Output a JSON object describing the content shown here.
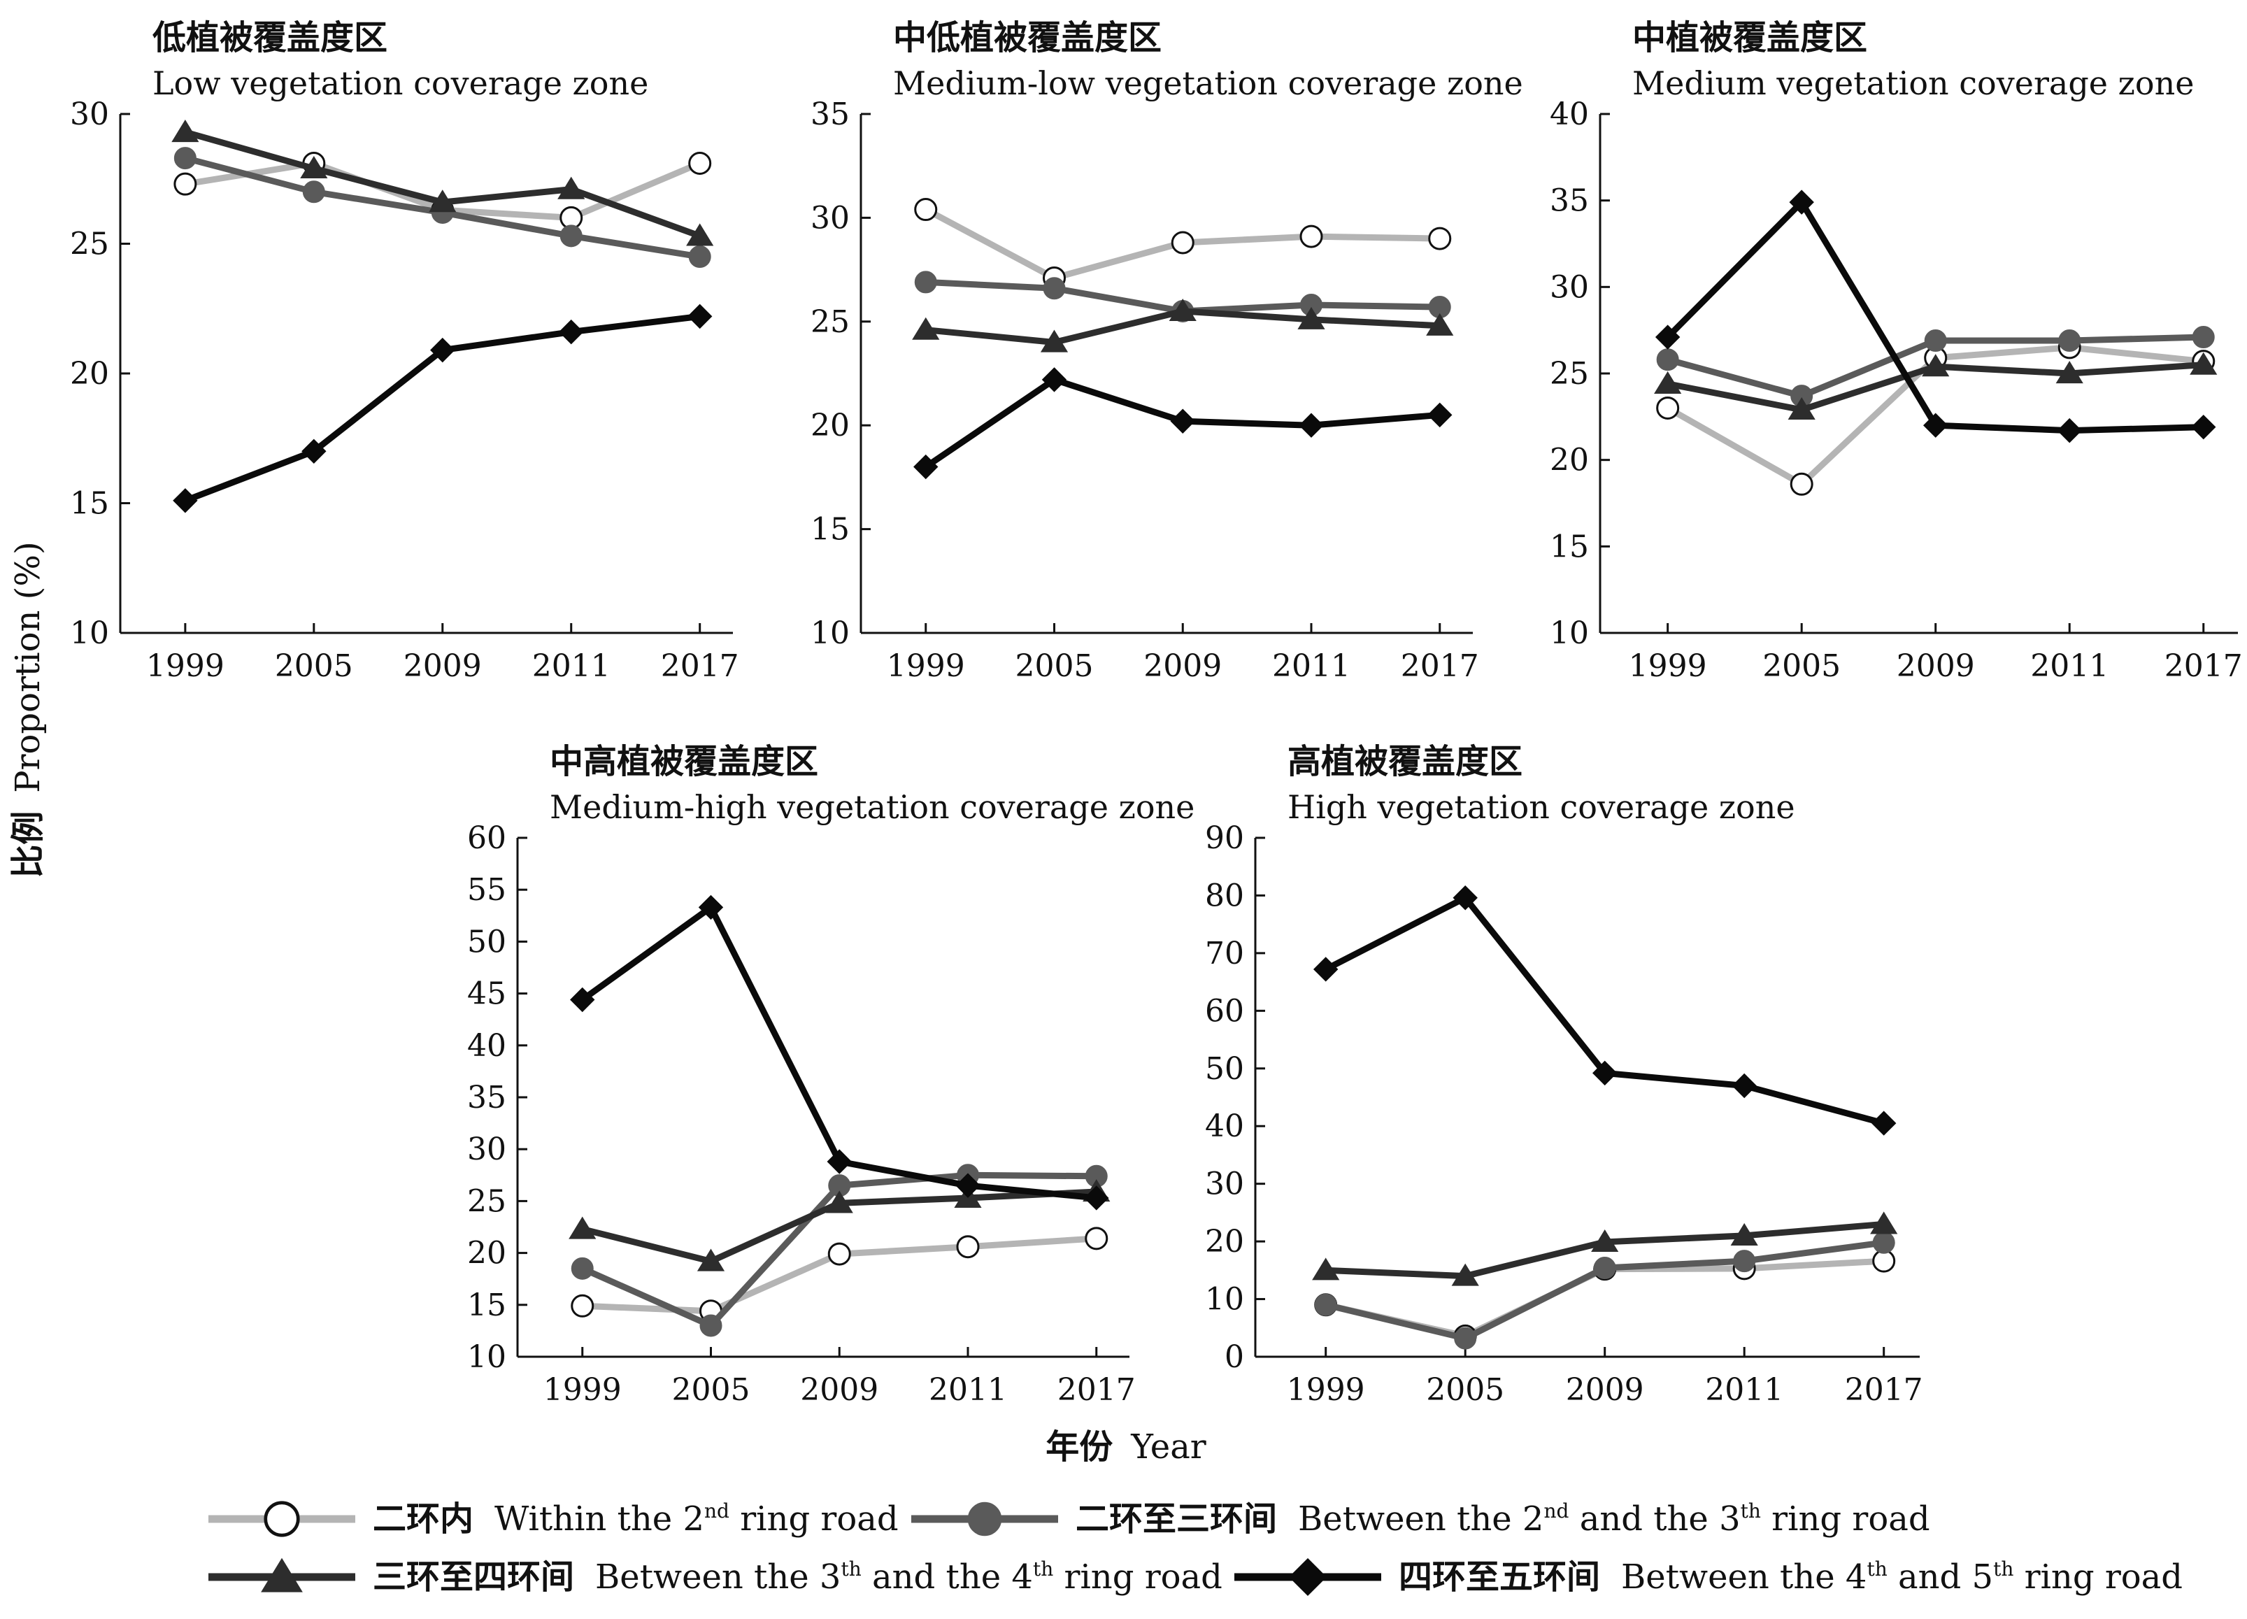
{
  "chart_data": {
    "type": "line",
    "xlabel_zh": "年份",
    "xlabel_en": "Year",
    "ylabel_zh": "比例",
    "ylabel_en": "Proportion (%)",
    "categories": [
      "1999",
      "2005",
      "2009",
      "2011",
      "2017"
    ],
    "series_styles": {
      "s1": {
        "color": "#b4b4b4",
        "marker": "circle-open"
      },
      "s2": {
        "color": "#5a5a5a",
        "marker": "circle-filled"
      },
      "s3": {
        "color": "#2d2d2d",
        "marker": "triangle"
      },
      "s4": {
        "color": "#0a0a0a",
        "marker": "diamond"
      }
    },
    "legend": [
      {
        "key": "s1",
        "zh": "二环内",
        "en_pre": "Within the 2",
        "sup1": "nd",
        "en_mid": " ring road",
        "sup2": "",
        "en_post": ""
      },
      {
        "key": "s2",
        "zh": "二环至三环间",
        "en_pre": "Between the 2",
        "sup1": "nd",
        "en_mid": " and the 3",
        "sup2": "th",
        "en_post": " ring road"
      },
      {
        "key": "s3",
        "zh": "三环至四环间",
        "en_pre": "Between the 3",
        "sup1": "th",
        "en_mid": " and the 4",
        "sup2": "th",
        "en_post": " ring road"
      },
      {
        "key": "s4",
        "zh": "四环至五环间",
        "en_pre": "Between the 4",
        "sup1": "th",
        "en_mid": " and 5",
        "sup2": "th",
        "en_post": " ring road"
      }
    ],
    "panels": [
      {
        "id": "low",
        "title_zh": "低植被覆盖度区",
        "title_en": "Low vegetation coverage zone",
        "ylim": [
          10,
          30
        ],
        "yticks": [
          10,
          15,
          20,
          25,
          30
        ],
        "series": {
          "s1": [
            27.3,
            28.1,
            26.3,
            26.0,
            28.1
          ],
          "s2": [
            28.3,
            27.0,
            26.2,
            25.3,
            24.5
          ],
          "s3": [
            29.3,
            27.9,
            26.6,
            27.1,
            25.3
          ],
          "s4": [
            15.1,
            17.0,
            20.9,
            21.6,
            22.2
          ]
        }
      },
      {
        "id": "medlow",
        "title_zh": "中低植被覆盖度区",
        "title_en": "Medium-low vegetation coverage zone",
        "ylim": [
          10,
          35
        ],
        "yticks": [
          10,
          15,
          20,
          25,
          30,
          35
        ],
        "series": {
          "s1": [
            30.4,
            27.1,
            28.8,
            29.1,
            29.0
          ],
          "s2": [
            26.9,
            26.6,
            25.5,
            25.8,
            25.7
          ],
          "s3": [
            24.6,
            24.0,
            25.5,
            25.1,
            24.8
          ],
          "s4": [
            18.0,
            22.2,
            20.2,
            20.0,
            20.5
          ]
        }
      },
      {
        "id": "med",
        "title_zh": "中植被覆盖度区",
        "title_en": "Medium vegetation coverage zone",
        "ylim": [
          10,
          40
        ],
        "yticks": [
          10,
          15,
          20,
          25,
          30,
          35,
          40
        ],
        "series": {
          "s1": [
            23.0,
            18.6,
            25.9,
            26.5,
            25.7
          ],
          "s2": [
            25.8,
            23.7,
            26.9,
            26.9,
            27.1
          ],
          "s3": [
            24.4,
            22.9,
            25.4,
            25.0,
            25.5
          ],
          "s4": [
            27.1,
            34.9,
            22.0,
            21.7,
            21.9
          ]
        }
      },
      {
        "id": "medhigh",
        "title_zh": "中高植被覆盖度区",
        "title_en": "Medium-high vegetation coverage zone",
        "ylim": [
          10,
          60
        ],
        "yticks": [
          10,
          15,
          20,
          25,
          30,
          35,
          40,
          45,
          50,
          55,
          60
        ],
        "series": {
          "s1": [
            14.9,
            14.4,
            19.9,
            20.6,
            21.4
          ],
          "s2": [
            18.5,
            13.0,
            26.5,
            27.5,
            27.4
          ],
          "s3": [
            22.3,
            19.2,
            24.8,
            25.3,
            25.9
          ],
          "s4": [
            44.4,
            53.3,
            28.8,
            26.5,
            25.3
          ]
        }
      },
      {
        "id": "high",
        "title_zh": "高植被覆盖度区",
        "title_en": "High vegetation coverage zone",
        "ylim": [
          0,
          90
        ],
        "yticks": [
          0,
          10,
          20,
          30,
          40,
          50,
          60,
          70,
          80,
          90
        ],
        "series": {
          "s1": [
            9.0,
            3.6,
            15.2,
            15.3,
            16.6
          ],
          "s2": [
            9.0,
            3.2,
            15.4,
            16.6,
            19.8
          ],
          "s3": [
            15.0,
            14.0,
            19.9,
            21.0,
            23.0
          ],
          "s4": [
            67.2,
            79.6,
            49.2,
            47.0,
            40.5
          ]
        }
      }
    ]
  }
}
